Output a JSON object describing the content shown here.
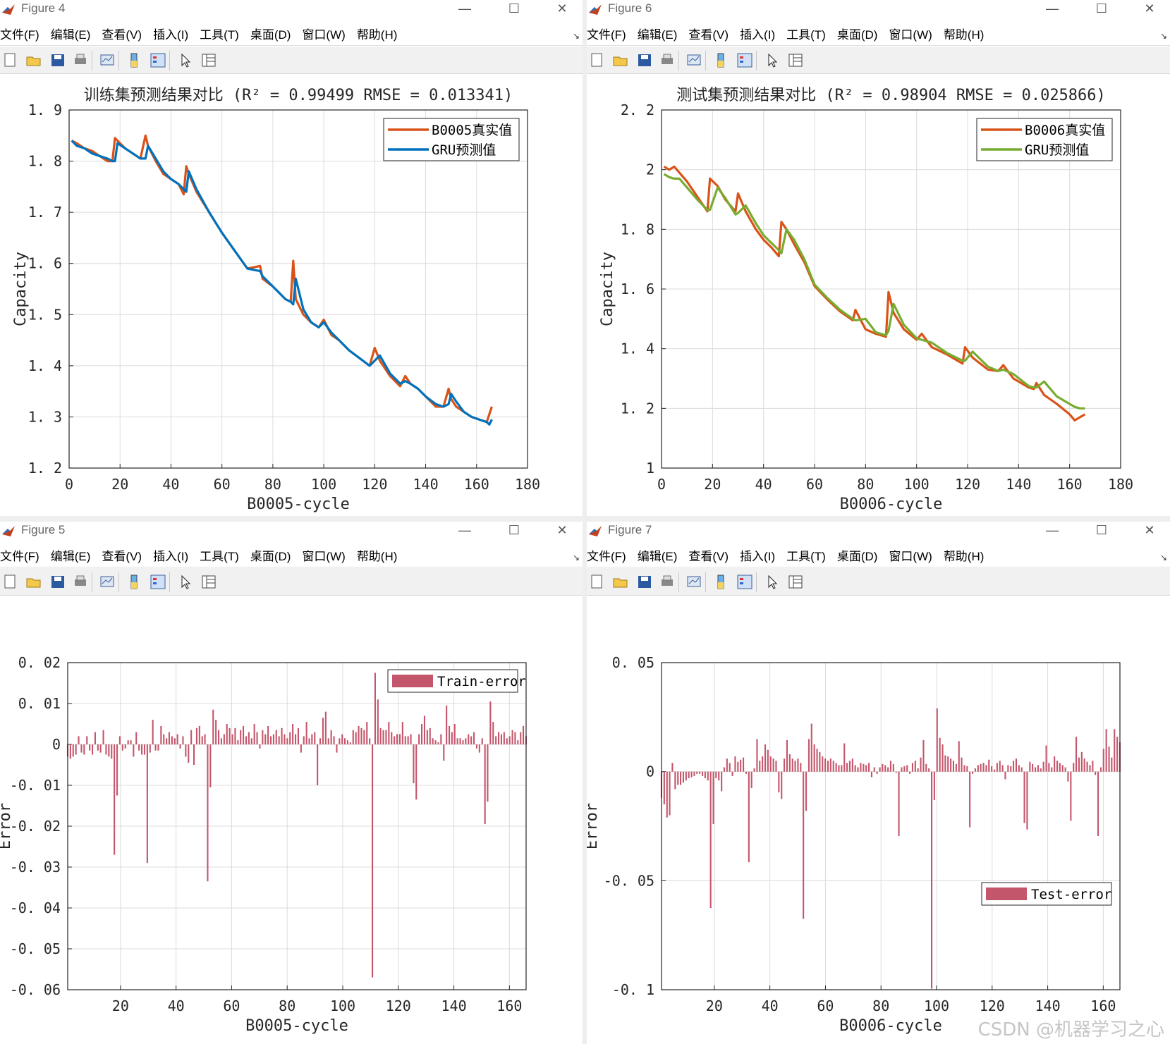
{
  "menus": [
    "文件(F)",
    "编辑(E)",
    "查看(V)",
    "插入(I)",
    "工具(T)",
    "桌面(D)",
    "窗口(W)",
    "帮助(H)"
  ],
  "windows": [
    {
      "title": "Figure 4"
    },
    {
      "title": "Figure 6"
    },
    {
      "title": "Figure 5"
    },
    {
      "title": "Figure 7"
    }
  ],
  "colors": {
    "actual": "#D95319",
    "gru_blue": "#0072BD",
    "gru_green": "#77AC30",
    "error_bar": "#C4566B"
  },
  "watermark": "CSDN @机器学习之心",
  "chart_data": [
    {
      "type": "line",
      "title": "训练集预测结果对比 (R² = 0.99499 RMSE = 0.013341)",
      "xlabel": "B0005-cycle",
      "ylabel": "Capacity",
      "xlim": [
        0,
        180
      ],
      "ylim": [
        1.2,
        1.9
      ],
      "xticks": [
        "0",
        "20",
        "40",
        "60",
        "80",
        "100",
        "120",
        "140",
        "160",
        "180"
      ],
      "yticks": [
        "1.2",
        "1.3",
        "1.4",
        "1.5",
        "1.6",
        "1.7",
        "1.8",
        "1.9"
      ],
      "grid": true,
      "legend_position": "top-right",
      "x_points": [
        1,
        3,
        6,
        9,
        12,
        15,
        17,
        18,
        19,
        22,
        25,
        28,
        30,
        31,
        34,
        37,
        40,
        43,
        45,
        46,
        47,
        50,
        55,
        60,
        65,
        70,
        75,
        76,
        80,
        85,
        87,
        88,
        89,
        92,
        95,
        98,
        100,
        103,
        106,
        110,
        114,
        118,
        120,
        122,
        126,
        130,
        132,
        134,
        137,
        140,
        144,
        147,
        149,
        150,
        152,
        155,
        158,
        161,
        164,
        165,
        166
      ],
      "series": [
        {
          "name": "B0005真实值",
          "color": "#D95319",
          "values": [
            1.84,
            1.835,
            1.825,
            1.82,
            1.81,
            1.8,
            1.8,
            1.845,
            1.84,
            1.825,
            1.815,
            1.805,
            1.85,
            1.83,
            1.8,
            1.775,
            1.765,
            1.755,
            1.735,
            1.79,
            1.775,
            1.74,
            1.7,
            1.66,
            1.625,
            1.59,
            1.595,
            1.57,
            1.555,
            1.53,
            1.525,
            1.605,
            1.53,
            1.5,
            1.485,
            1.475,
            1.49,
            1.46,
            1.45,
            1.43,
            1.415,
            1.4,
            1.435,
            1.41,
            1.38,
            1.36,
            1.38,
            1.365,
            1.355,
            1.34,
            1.32,
            1.32,
            1.355,
            1.335,
            1.32,
            1.31,
            1.3,
            1.295,
            1.29,
            1.305,
            1.32
          ]
        },
        {
          "name": "GRU预测值",
          "color": "#0072BD",
          "values": [
            1.84,
            1.83,
            1.825,
            1.815,
            1.81,
            1.805,
            1.8,
            1.8,
            1.835,
            1.825,
            1.815,
            1.805,
            1.805,
            1.83,
            1.805,
            1.78,
            1.765,
            1.755,
            1.745,
            1.74,
            1.78,
            1.745,
            1.7,
            1.66,
            1.625,
            1.59,
            1.585,
            1.575,
            1.555,
            1.53,
            1.525,
            1.52,
            1.57,
            1.51,
            1.485,
            1.475,
            1.485,
            1.465,
            1.45,
            1.43,
            1.415,
            1.4,
            1.41,
            1.42,
            1.385,
            1.365,
            1.37,
            1.365,
            1.355,
            1.34,
            1.325,
            1.32,
            1.325,
            1.345,
            1.33,
            1.31,
            1.3,
            1.295,
            1.29,
            1.285,
            1.295
          ]
        }
      ]
    },
    {
      "type": "line",
      "title": "测试集预测结果对比 (R² = 0.98904 RMSE = 0.025866)",
      "xlabel": "B0006-cycle",
      "ylabel": "Capacity",
      "xlim": [
        0,
        180
      ],
      "ylim": [
        1.0,
        2.2
      ],
      "xticks": [
        "0",
        "20",
        "40",
        "60",
        "80",
        "100",
        "120",
        "140",
        "160",
        "180"
      ],
      "yticks": [
        "1",
        "1.2",
        "1.4",
        "1.6",
        "1.8",
        "2",
        "2.2"
      ],
      "grid": true,
      "legend_position": "top-right",
      "x_points": [
        1,
        3,
        5,
        7,
        10,
        14,
        18,
        19,
        22,
        25,
        29,
        30,
        33,
        37,
        40,
        43,
        46,
        47,
        49,
        52,
        56,
        60,
        65,
        70,
        75,
        76,
        80,
        84,
        88,
        89,
        91,
        95,
        100,
        102,
        106,
        112,
        118,
        119,
        122,
        128,
        132,
        134,
        138,
        144,
        146,
        147,
        150,
        155,
        160,
        162,
        164,
        166
      ],
      "series": [
        {
          "name": "B0006真实值",
          "color": "#D95319",
          "values": [
            2.01,
            2.0,
            2.01,
            1.99,
            1.96,
            1.91,
            1.86,
            1.97,
            1.945,
            1.9,
            1.86,
            1.92,
            1.86,
            1.8,
            1.765,
            1.74,
            1.71,
            1.825,
            1.8,
            1.75,
            1.69,
            1.61,
            1.565,
            1.525,
            1.495,
            1.53,
            1.465,
            1.45,
            1.44,
            1.59,
            1.52,
            1.465,
            1.43,
            1.45,
            1.405,
            1.38,
            1.35,
            1.405,
            1.37,
            1.33,
            1.325,
            1.345,
            1.3,
            1.27,
            1.265,
            1.285,
            1.245,
            1.215,
            1.18,
            1.16,
            1.17,
            1.18
          ]
        },
        {
          "name": "GRU预测值",
          "color": "#77AC30",
          "values": [
            1.985,
            1.975,
            1.97,
            1.97,
            1.94,
            1.9,
            1.865,
            1.865,
            1.94,
            1.905,
            1.85,
            1.855,
            1.88,
            1.82,
            1.78,
            1.755,
            1.73,
            1.72,
            1.8,
            1.765,
            1.7,
            1.615,
            1.57,
            1.53,
            1.5,
            1.495,
            1.5,
            1.455,
            1.445,
            1.46,
            1.55,
            1.48,
            1.435,
            1.43,
            1.42,
            1.385,
            1.36,
            1.36,
            1.39,
            1.34,
            1.325,
            1.33,
            1.315,
            1.275,
            1.27,
            1.27,
            1.29,
            1.24,
            1.215,
            1.205,
            1.2,
            1.2
          ]
        }
      ]
    },
    {
      "type": "bar",
      "xlabel": "B0005-cycle",
      "ylabel": "Error",
      "xlim": [
        1,
        166
      ],
      "ylim": [
        -0.06,
        0.02
      ],
      "xticks": [
        "20",
        "40",
        "60",
        "80",
        "100",
        "120",
        "140",
        "160"
      ],
      "yticks": [
        "0.02",
        "0.01",
        "0",
        "-0.01",
        "-0.02",
        "-0.03",
        "-0.04",
        "-0.05",
        "-0.06"
      ],
      "grid": true,
      "legend_position": "top-right",
      "series": [
        {
          "name": "Train-error",
          "color": "#C4566B",
          "values": [
            -0.003,
            -0.0035,
            -0.003,
            -0.0025,
            0.002,
            -0.002,
            -0.0025,
            0.002,
            -0.0015,
            -0.0025,
            0.003,
            -0.0015,
            -0.002,
            0.0035,
            -0.0025,
            -0.003,
            -0.0035,
            -0.027,
            -0.0125,
            0.002,
            -0.0015,
            -0.001,
            0.001,
            0.001,
            -0.003,
            0.003,
            -0.0015,
            -0.0025,
            -0.0025,
            -0.029,
            -0.002,
            0.006,
            -0.0015,
            -0.0015,
            0.0045,
            0.0025,
            0.0015,
            0.003,
            0.002,
            0.0015,
            0.0025,
            -0.001,
            0.002,
            -0.003,
            -0.0045,
            0.0035,
            -0.005,
            0.004,
            0.0045,
            0.002,
            0.0025,
            -0.0335,
            -0.0105,
            0.0085,
            0.006,
            0.0035,
            0.0015,
            0.0025,
            0.005,
            0.004,
            0.0025,
            0.004,
            0.001,
            0.0035,
            0.0045,
            0.002,
            0.003,
            0.0015,
            0.005,
            0.003,
            -0.001,
            0.0035,
            0.0025,
            0.0045,
            0.002,
            0.0025,
            0.0035,
            0.002,
            0.004,
            0.0025,
            0.0015,
            0.003,
            0.005,
            0.0025,
            0.004,
            -0.002,
            0.002,
            0.0055,
            0.0015,
            0.0025,
            0.003,
            -0.01,
            0.0015,
            0.0065,
            0.008,
            0.0015,
            0.0035,
            0.002,
            -0.002,
            0.0015,
            0.0025,
            0.0015,
            0.001,
            0.0005,
            0.0035,
            0.003,
            0.0045,
            0.004,
            0.0035,
            0.0055,
            0.0015,
            -0.057,
            0.0175,
            0.011,
            0.004,
            0.0035,
            0.0035,
            0.0055,
            0.003,
            0.002,
            0.0025,
            0.0025,
            0.0055,
            0.002,
            0.002,
            0.0025,
            -0.0095,
            -0.0135,
            0.0025,
            0.005,
            0.007,
            0.0035,
            0.004,
            0.0015,
            0.001,
            0.0005,
            0.0025,
            -0.004,
            0.0095,
            0.0045,
            0.003,
            0.005,
            0.0015,
            0.0015,
            0.001,
            0.0015,
            0.0025,
            0.002,
            0.003,
            -0.001,
            -0.002,
            0.0015,
            -0.0195,
            -0.014,
            0.0105,
            0.0055,
            0.002,
            0.003,
            0.0025,
            0.003,
            0.0015,
            0.002,
            0.0035,
            0.003,
            0.001,
            0.003,
            0.0045,
            0.002
          ]
        }
      ]
    },
    {
      "type": "bar",
      "xlabel": "B0006-cycle",
      "ylabel": "Error",
      "xlim": [
        1,
        166
      ],
      "ylim": [
        -0.1,
        0.05
      ],
      "xticks": [
        "20",
        "40",
        "60",
        "80",
        "100",
        "120",
        "140",
        "160"
      ],
      "yticks": [
        "0.05",
        "0",
        "-0.05",
        "-0.1"
      ],
      "grid": true,
      "legend_position": "bottom-right",
      "series": [
        {
          "name": "Test-error",
          "color": "#C4566B",
          "values": [
            -0.012,
            -0.015,
            -0.021,
            -0.02,
            0.004,
            -0.008,
            -0.006,
            -0.006,
            -0.005,
            -0.004,
            -0.003,
            -0.0025,
            -0.002,
            -0.001,
            -0.001,
            -0.002,
            -0.003,
            -0.004,
            -0.0625,
            -0.024,
            -0.003,
            -0.004,
            -0.009,
            0.002,
            0.006,
            0.004,
            -0.002,
            0.007,
            0.0045,
            0.0055,
            0.0065,
            -0.001,
            -0.0415,
            -0.0075,
            0.0015,
            0.015,
            0.005,
            0.007,
            0.0125,
            0.01,
            0.007,
            0.006,
            0.005,
            -0.0095,
            -0.0125,
            0.006,
            0.0145,
            0.008,
            0.006,
            0.005,
            0.006,
            0.004,
            -0.0675,
            -0.018,
            0.015,
            0.022,
            0.0125,
            0.0105,
            0.009,
            0.007,
            0.006,
            0.005,
            0.006,
            0.005,
            0.004,
            0.003,
            0.003,
            0.013,
            0.004,
            0.005,
            0.006,
            0.003,
            0.002,
            0.004,
            0.0035,
            0.003,
            0.004,
            -0.0025,
            0.002,
            -0.001,
            0.002,
            0.0035,
            0.003,
            0.002,
            0.005,
            0.0035,
            -0.0005,
            -0.0295,
            0.002,
            0.0025,
            0.003,
            -0.001,
            0.004,
            0.005,
            0.0015,
            0.0065,
            0.0145,
            0.0035,
            0.0015,
            -0.0995,
            -0.013,
            0.029,
            0.0155,
            0.0125,
            0.0075,
            0.007,
            0.006,
            0.005,
            0.0035,
            0.014,
            0.0065,
            0.003,
            0.0025,
            -0.0255,
            -0.001,
            0.0015,
            0.003,
            0.0035,
            0.004,
            0.003,
            0.0055,
            0.0025,
            0.001,
            0.004,
            0.005,
            0.003,
            -0.0035,
            0.003,
            0.0025,
            0.005,
            0.006,
            0.003,
            0.002,
            -0.0235,
            -0.0265,
            0.0045,
            0.0035,
            0.002,
            0.003,
            0.0015,
            0.0045,
            0.012,
            0.004,
            0.002,
            0.007,
            0.005,
            0.004,
            0.003,
            0.002,
            -0.0045,
            -0.0225,
            0.004,
            0.016,
            0.0065,
            0.009,
            0.006,
            0.0045,
            0.003,
            0.005,
            -0.0015,
            -0.0295,
            0.002,
            0.0105,
            0.0195,
            0.0115,
            0.0065,
            0.0195,
            0.016,
            0.0135
          ]
        }
      ]
    }
  ]
}
